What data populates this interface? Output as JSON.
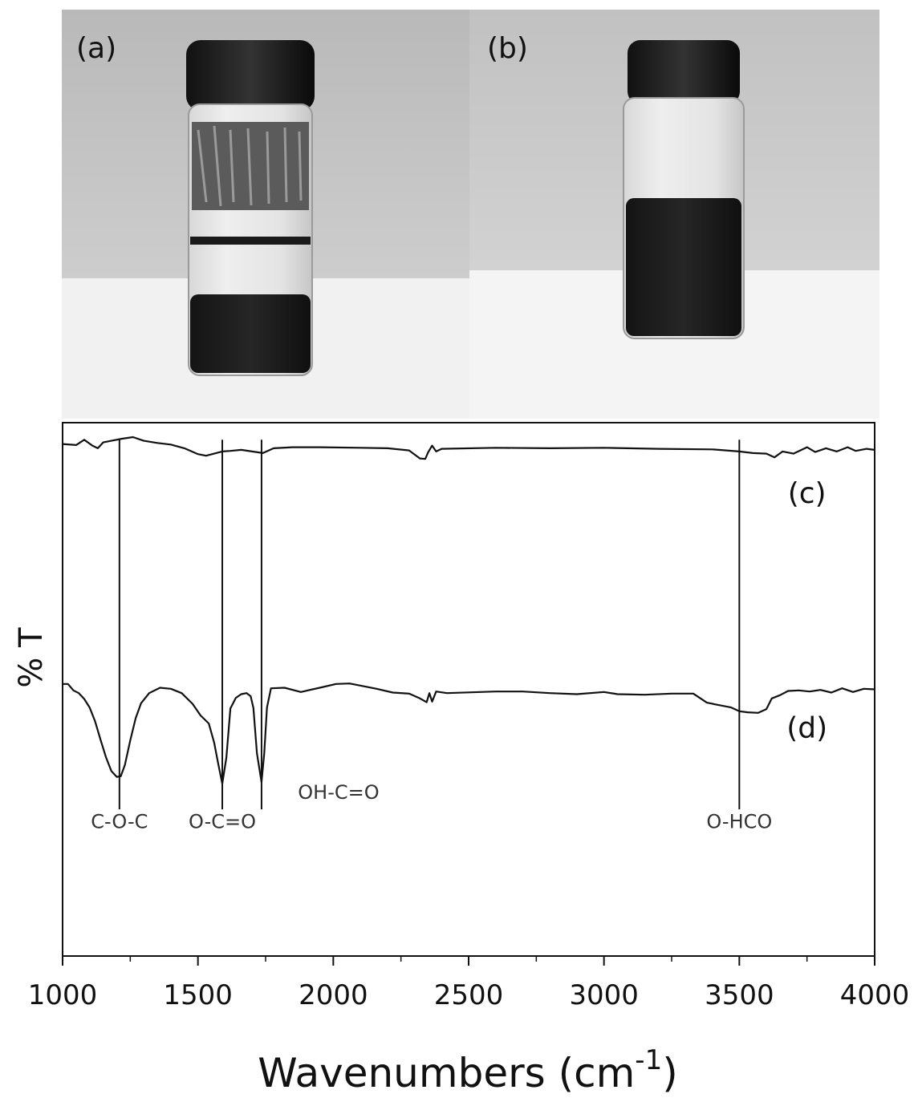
{
  "photo": {
    "panels": [
      {
        "label": "(a)"
      },
      {
        "label": "(b)"
      }
    ]
  },
  "chart_data": {
    "type": "line",
    "title": "",
    "xlabel": "Wavenumbers (cm",
    "xlabel_sup": "-1",
    "xlabel_close": ")",
    "ylabel": "% T",
    "xlim": [
      1000,
      4000
    ],
    "ylim": [
      0,
      100
    ],
    "x_ticks": [
      1000,
      1500,
      2000,
      2500,
      3000,
      3500,
      4000
    ],
    "x_tick_labels": [
      "1000",
      "1500",
      "2000",
      "2500",
      "3000",
      "3500",
      "4000"
    ],
    "grid": false,
    "series": [
      {
        "name": "(c)",
        "points": [
          [
            1000,
            96
          ],
          [
            1050,
            95.8
          ],
          [
            1080,
            96.8
          ],
          [
            1110,
            95.7
          ],
          [
            1130,
            95.2
          ],
          [
            1150,
            96.3
          ],
          [
            1180,
            96.6
          ],
          [
            1220,
            97
          ],
          [
            1260,
            97.3
          ],
          [
            1300,
            96.6
          ],
          [
            1350,
            96.2
          ],
          [
            1400,
            95.9
          ],
          [
            1450,
            95.2
          ],
          [
            1500,
            94.1
          ],
          [
            1530,
            93.8
          ],
          [
            1560,
            94.2
          ],
          [
            1590,
            94.6
          ],
          [
            1620,
            94.7
          ],
          [
            1660,
            94.9
          ],
          [
            1700,
            94.6
          ],
          [
            1740,
            94.3
          ],
          [
            1780,
            95.2
          ],
          [
            1850,
            95.4
          ],
          [
            1950,
            95.4
          ],
          [
            2100,
            95.3
          ],
          [
            2200,
            95.2
          ],
          [
            2280,
            94.8
          ],
          [
            2320,
            93.3
          ],
          [
            2340,
            93.2
          ],
          [
            2350,
            94.4
          ],
          [
            2365,
            95.7
          ],
          [
            2380,
            94.6
          ],
          [
            2400,
            95.1
          ],
          [
            2600,
            95.3
          ],
          [
            2800,
            95.2
          ],
          [
            3000,
            95.3
          ],
          [
            3200,
            95.1
          ],
          [
            3400,
            95.0
          ],
          [
            3500,
            94.6
          ],
          [
            3550,
            94.3
          ],
          [
            3600,
            94.2
          ],
          [
            3630,
            93.5
          ],
          [
            3660,
            94.6
          ],
          [
            3700,
            94.2
          ],
          [
            3750,
            95.4
          ],
          [
            3780,
            94.5
          ],
          [
            3820,
            95.2
          ],
          [
            3860,
            94.6
          ],
          [
            3900,
            95.4
          ],
          [
            3930,
            94.7
          ],
          [
            3970,
            95.1
          ],
          [
            4000,
            94.9
          ]
        ]
      },
      {
        "name": "(d)",
        "points": [
          [
            1000,
            51
          ],
          [
            1020,
            51
          ],
          [
            1040,
            49.8
          ],
          [
            1060,
            49.3
          ],
          [
            1080,
            48.2
          ],
          [
            1100,
            46.6
          ],
          [
            1120,
            44
          ],
          [
            1140,
            40.6
          ],
          [
            1160,
            37.3
          ],
          [
            1180,
            34.7
          ],
          [
            1200,
            33.6
          ],
          [
            1215,
            33.7
          ],
          [
            1230,
            35.8
          ],
          [
            1250,
            40.4
          ],
          [
            1270,
            44.6
          ],
          [
            1290,
            47.4
          ],
          [
            1320,
            49.3
          ],
          [
            1360,
            50.3
          ],
          [
            1400,
            50.1
          ],
          [
            1440,
            49.3
          ],
          [
            1480,
            47.3
          ],
          [
            1510,
            45.1
          ],
          [
            1540,
            43.6
          ],
          [
            1560,
            40
          ],
          [
            1575,
            36
          ],
          [
            1590,
            32.3
          ],
          [
            1605,
            37.2
          ],
          [
            1620,
            46.4
          ],
          [
            1640,
            48.4
          ],
          [
            1660,
            49.1
          ],
          [
            1680,
            49.3
          ],
          [
            1695,
            48.7
          ],
          [
            1705,
            46.5
          ],
          [
            1718,
            38
          ],
          [
            1735,
            32.6
          ],
          [
            1745,
            38
          ],
          [
            1755,
            46.6
          ],
          [
            1770,
            50.2
          ],
          [
            1820,
            50.3
          ],
          [
            1880,
            49.5
          ],
          [
            1950,
            50.3
          ],
          [
            2010,
            51
          ],
          [
            2060,
            51.1
          ],
          [
            2100,
            50.7
          ],
          [
            2160,
            50.1
          ],
          [
            2220,
            49.4
          ],
          [
            2280,
            49.2
          ],
          [
            2320,
            48.3
          ],
          [
            2345,
            47.6
          ],
          [
            2355,
            49.3
          ],
          [
            2365,
            47.7
          ],
          [
            2380,
            49.6
          ],
          [
            2420,
            49.3
          ],
          [
            2600,
            49.6
          ],
          [
            2700,
            49.6
          ],
          [
            2800,
            49.3
          ],
          [
            2900,
            49.1
          ],
          [
            3000,
            49.5
          ],
          [
            3050,
            49.1
          ],
          [
            3150,
            49
          ],
          [
            3250,
            49.2
          ],
          [
            3330,
            49.2
          ],
          [
            3380,
            47.5
          ],
          [
            3420,
            47.1
          ],
          [
            3470,
            46.6
          ],
          [
            3500,
            45.9
          ],
          [
            3530,
            45.7
          ],
          [
            3570,
            45.6
          ],
          [
            3600,
            46.3
          ],
          [
            3620,
            48.3
          ],
          [
            3650,
            48.9
          ],
          [
            3680,
            49.7
          ],
          [
            3720,
            49.8
          ],
          [
            3760,
            49.6
          ],
          [
            3800,
            49.9
          ],
          [
            3840,
            49.4
          ],
          [
            3880,
            50.2
          ],
          [
            3920,
            49.5
          ],
          [
            3960,
            50.1
          ],
          [
            4000,
            50
          ]
        ]
      }
    ],
    "series_labels": [
      {
        "text": "(c)",
        "x": 3750,
        "y": 85
      },
      {
        "text": "(d)",
        "x": 3750,
        "y": 41
      }
    ],
    "annotations": [
      {
        "text": "C-O-C",
        "x": 1210,
        "label_y": 24
      },
      {
        "text": "O-C=O",
        "x": 1590,
        "label_y": 24
      },
      {
        "text": "OH-C=O",
        "x": 1735,
        "label_y": 29.5
      },
      {
        "text": "O-HCO",
        "x": 3500,
        "label_y": 24
      }
    ],
    "marker_lines": {
      "x": [
        1210,
        1590,
        1735,
        3500
      ],
      "y_top": 96.8,
      "y_bottom": 27.5
    }
  }
}
